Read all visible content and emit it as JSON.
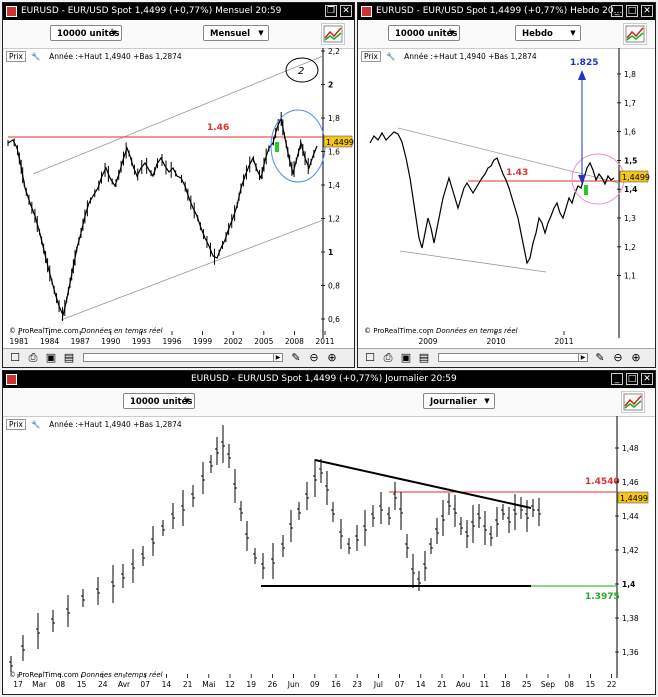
{
  "monthly": {
    "title": "EURUSD - EUR/USD Spot     1,4499 (+0,77%)     Mensuel  20:59",
    "units_select": "10000 unités",
    "period_select": "Mensuel",
    "prix_label": "Prix",
    "info": "Année :+Haut 1,4940 +Bas 1,2874",
    "copyright": "© ProRealTime.com",
    "copyright_note": "Données en temps réel",
    "annotation_level": "1.46",
    "annotation_circle": "2",
    "price_tag": "1,4499",
    "y_ticks": [
      "2,2",
      "2",
      "1,8",
      "1,6",
      "1,4",
      "1,2",
      "1",
      "0,8",
      "0,6"
    ],
    "x_ticks": [
      "1981",
      "1984",
      "1987",
      "1990",
      "1993",
      "1996",
      "1999",
      "2002",
      "2005",
      "2008",
      "2011"
    ]
  },
  "weekly": {
    "title": "EURUSD - EUR/USD Spot     1,4499 (+0,77%)     Hebdo  20...",
    "units_select": "10000 unités",
    "period_select": "Hebdo",
    "prix_label": "Prix",
    "info": "Année :+Haut 1,4940 +Bas 1,2874",
    "copyright": "© ProRealTime.com",
    "copyright_note": "Données en temps réel",
    "annotation_level": "1.43",
    "annotation_target": "1.825",
    "price_tag": "1,4499",
    "y_ticks": [
      "1,8",
      "1,7",
      "1,6",
      "1,5",
      "1,4",
      "1,3",
      "1,2",
      "1,1"
    ],
    "x_ticks": [
      "2009",
      "2010",
      "2011"
    ]
  },
  "daily": {
    "title": "EURUSD - EUR/USD Spot     1,4499 (+0,77%)     Journalier  20:59",
    "units_select": "10000 unités",
    "period_select": "Journalier",
    "prix_label": "Prix",
    "info": "Année :+Haut 1,4940 +Bas 1,2874",
    "copyright": "© ProRealTime.com",
    "copyright_note": "Données en temps réel",
    "annotation_high": "1.4540",
    "annotation_low": "1.3975",
    "price_tag": "1,4499",
    "y_ticks": [
      "1,48",
      "1,46",
      "1,44",
      "1,42",
      "1,4",
      "1,38",
      "1,36"
    ],
    "x_ticks": [
      "17",
      "Mar",
      "08",
      "15",
      "24",
      "Avr",
      "07",
      "14",
      "21",
      "Mai",
      "12",
      "19",
      "26",
      "Jun",
      "09",
      "16",
      "23",
      "Jul",
      "07",
      "14",
      "21",
      "Aou",
      "11",
      "18",
      "25",
      "Sep",
      "08",
      "15",
      "22"
    ]
  },
  "colors": {
    "red_line": "#e03030",
    "green_line": "#22aa22",
    "blue": "#2233cc",
    "tag_bg": "#f5c518"
  }
}
